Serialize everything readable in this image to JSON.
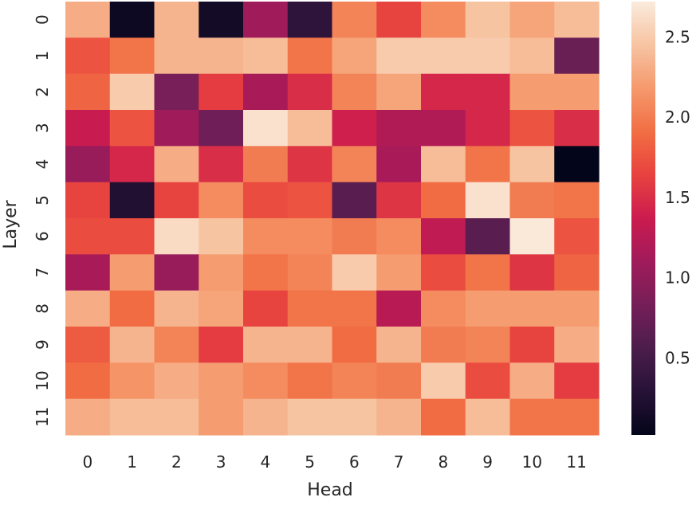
{
  "chart_data": {
    "type": "heatmap",
    "xlabel": "Head",
    "ylabel": "Layer",
    "x_categories": [
      "0",
      "1",
      "2",
      "3",
      "4",
      "5",
      "6",
      "7",
      "8",
      "9",
      "10",
      "11"
    ],
    "y_categories": [
      "0",
      "1",
      "2",
      "3",
      "4",
      "5",
      "6",
      "7",
      "8",
      "9",
      "10",
      "11"
    ],
    "values": [
      [
        2.3,
        0.1,
        2.35,
        0.15,
        1.1,
        0.35,
        2.05,
        1.65,
        2.1,
        2.45,
        2.25,
        2.4
      ],
      [
        1.75,
        1.95,
        2.35,
        2.35,
        2.4,
        1.95,
        2.25,
        2.5,
        2.5,
        2.5,
        2.4,
        0.75
      ],
      [
        1.85,
        2.5,
        0.85,
        1.6,
        1.15,
        1.5,
        2.05,
        2.25,
        1.45,
        1.45,
        2.2,
        2.2
      ],
      [
        1.35,
        1.75,
        1.1,
        0.8,
        2.65,
        2.4,
        1.4,
        1.2,
        1.2,
        1.45,
        1.75,
        1.5
      ],
      [
        1.05,
        1.45,
        2.3,
        1.5,
        2.0,
        1.55,
        2.05,
        1.15,
        2.4,
        1.95,
        2.45,
        0.02
      ],
      [
        1.65,
        0.25,
        1.65,
        2.1,
        1.7,
        1.75,
        0.65,
        1.55,
        1.9,
        2.65,
        2.0,
        1.95
      ],
      [
        1.7,
        1.7,
        2.6,
        2.45,
        2.1,
        2.1,
        2.0,
        2.1,
        1.3,
        0.65,
        2.7,
        1.75
      ],
      [
        1.15,
        2.2,
        1.05,
        2.2,
        1.95,
        2.05,
        2.5,
        2.2,
        1.7,
        1.95,
        1.55,
        1.85
      ],
      [
        2.3,
        1.9,
        2.35,
        2.25,
        1.65,
        1.95,
        1.95,
        1.25,
        2.1,
        2.2,
        2.2,
        2.2
      ],
      [
        1.8,
        2.35,
        2.05,
        1.6,
        2.35,
        2.35,
        1.9,
        2.35,
        2.0,
        2.05,
        1.65,
        2.3
      ],
      [
        1.9,
        2.15,
        2.3,
        2.2,
        2.1,
        1.95,
        2.05,
        2.0,
        2.5,
        1.7,
        2.3,
        1.6
      ],
      [
        2.3,
        2.4,
        2.4,
        2.2,
        2.35,
        2.45,
        2.45,
        2.35,
        1.9,
        2.4,
        1.95,
        1.95
      ]
    ],
    "colorbar": {
      "vmin": 0.02,
      "vmax": 2.72,
      "ticks": [
        0.5,
        1.0,
        1.5,
        2.0,
        2.5
      ],
      "tick_labels": [
        "0.5",
        "1.0",
        "1.5",
        "2.0",
        "2.5"
      ],
      "colormap": "rocket"
    }
  }
}
